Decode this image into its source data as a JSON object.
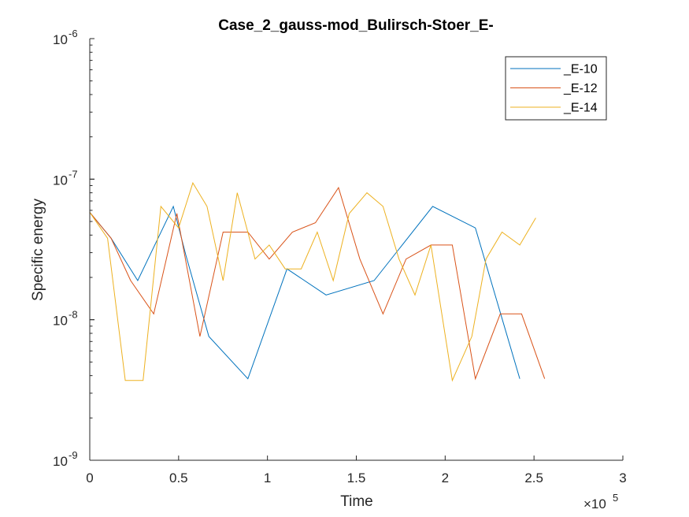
{
  "chart_data": {
    "type": "line",
    "title": "Case_2_gauss-mod_Bulirsch-Stoer_E-",
    "xlabel": "Time",
    "ylabel": "Specific energy",
    "x_multiplier_label": "×10",
    "x_multiplier_exponent": "5",
    "xlim": [
      0,
      300000
    ],
    "ylim": [
      1e-09,
      1e-06
    ],
    "yscale": "log",
    "x_ticks": [
      0,
      50000,
      100000,
      150000,
      200000,
      250000,
      300000
    ],
    "x_tick_labels": [
      "0",
      "0.5",
      "1",
      "1.5",
      "2",
      "2.5",
      "3"
    ],
    "y_ticks": [
      1e-09,
      1e-08,
      1e-07,
      1e-06
    ],
    "y_tick_labels": [
      {
        "base": "10",
        "exp": "-9"
      },
      {
        "base": "10",
        "exp": "-8"
      },
      {
        "base": "10",
        "exp": "-7"
      },
      {
        "base": "10",
        "exp": "-6"
      }
    ],
    "grid": false,
    "legend_position": "top-right",
    "series": [
      {
        "name": "_E-10",
        "color": "#0072BD",
        "x": [
          0,
          12000,
          27000,
          47000,
          54000,
          67000,
          89000,
          111000,
          133000,
          160000,
          193000,
          217000,
          242000
        ],
        "y": [
          5.8e-08,
          3.8e-08,
          1.9e-08,
          6.4e-08,
          2.9e-08,
          7.6e-09,
          3.8e-09,
          2.3e-08,
          1.5e-08,
          1.9e-08,
          6.4e-08,
          4.5e-08,
          3.8e-09
        ]
      },
      {
        "name": "_E-12",
        "color": "#D95319",
        "x": [
          0,
          12000,
          23000,
          36000,
          49000,
          62000,
          75000,
          89000,
          101000,
          114000,
          127000,
          140000,
          152000,
          165000,
          178000,
          192000,
          204000,
          217000,
          231000,
          243000,
          256000
        ],
        "y": [
          5.8e-08,
          3.8e-08,
          1.9e-08,
          1.1e-08,
          5.7e-08,
          7.6e-09,
          4.2e-08,
          4.2e-08,
          2.7e-08,
          4.2e-08,
          4.9e-08,
          8.7e-08,
          2.7e-08,
          1.1e-08,
          2.7e-08,
          3.4e-08,
          3.4e-08,
          3.8e-09,
          1.1e-08,
          1.1e-08,
          3.8e-09
        ]
      },
      {
        "name": "_E-14",
        "color": "#EDB120",
        "x": [
          0,
          10000,
          20000,
          30000,
          40000,
          50000,
          58000,
          66000,
          75000,
          83000,
          93000,
          101000,
          110000,
          119000,
          128000,
          137000,
          146000,
          156000,
          165000,
          174000,
          183000,
          192000,
          204000,
          215000,
          223000,
          232000,
          242000,
          251000
        ],
        "y": [
          5.8e-08,
          3.8e-08,
          3.7e-09,
          3.7e-09,
          6.4e-08,
          4.5e-08,
          9.4e-08,
          6.4e-08,
          1.9e-08,
          8e-08,
          2.7e-08,
          3.4e-08,
          2.3e-08,
          2.3e-08,
          4.2e-08,
          1.9e-08,
          5.7e-08,
          8e-08,
          6.4e-08,
          2.7e-08,
          1.5e-08,
          3.4e-08,
          3.7e-09,
          7.6e-09,
          2.7e-08,
          4.2e-08,
          3.4e-08,
          5.3e-08
        ]
      }
    ]
  }
}
